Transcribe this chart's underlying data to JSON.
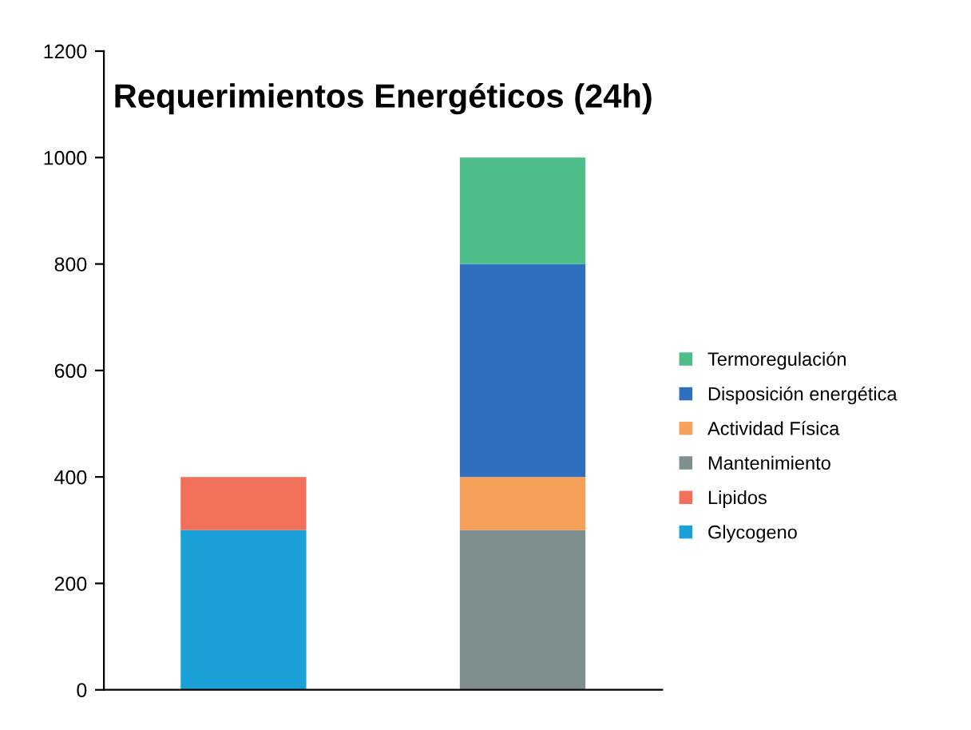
{
  "chart_data": {
    "type": "bar",
    "title": "Requerimientos Energéticos (24h)",
    "categories": [
      null,
      null
    ],
    "stacked": true,
    "series": [
      {
        "name": "Glycogeno",
        "color": "#1aa1d8",
        "values": [
          300,
          null
        ]
      },
      {
        "name": "Lipidos",
        "color": "#f0705a",
        "values": [
          100,
          null
        ]
      },
      {
        "name": "Mantenimiento",
        "color": "#7f8f8f",
        "values": [
          null,
          300
        ]
      },
      {
        "name": "Actividad Física",
        "color": "#f5a15a",
        "values": [
          null,
          100
        ]
      },
      {
        "name": "Disposición energética",
        "color": "#2e6fc0",
        "values": [
          null,
          400
        ]
      },
      {
        "name": "Termoregulación",
        "color": "#4dbd8a",
        "values": [
          null,
          200
        ]
      }
    ],
    "ylim": [
      0,
      1200
    ],
    "yticks": [
      0,
      200,
      400,
      600,
      800,
      1000,
      1200
    ],
    "grid": false,
    "legend": "right"
  }
}
